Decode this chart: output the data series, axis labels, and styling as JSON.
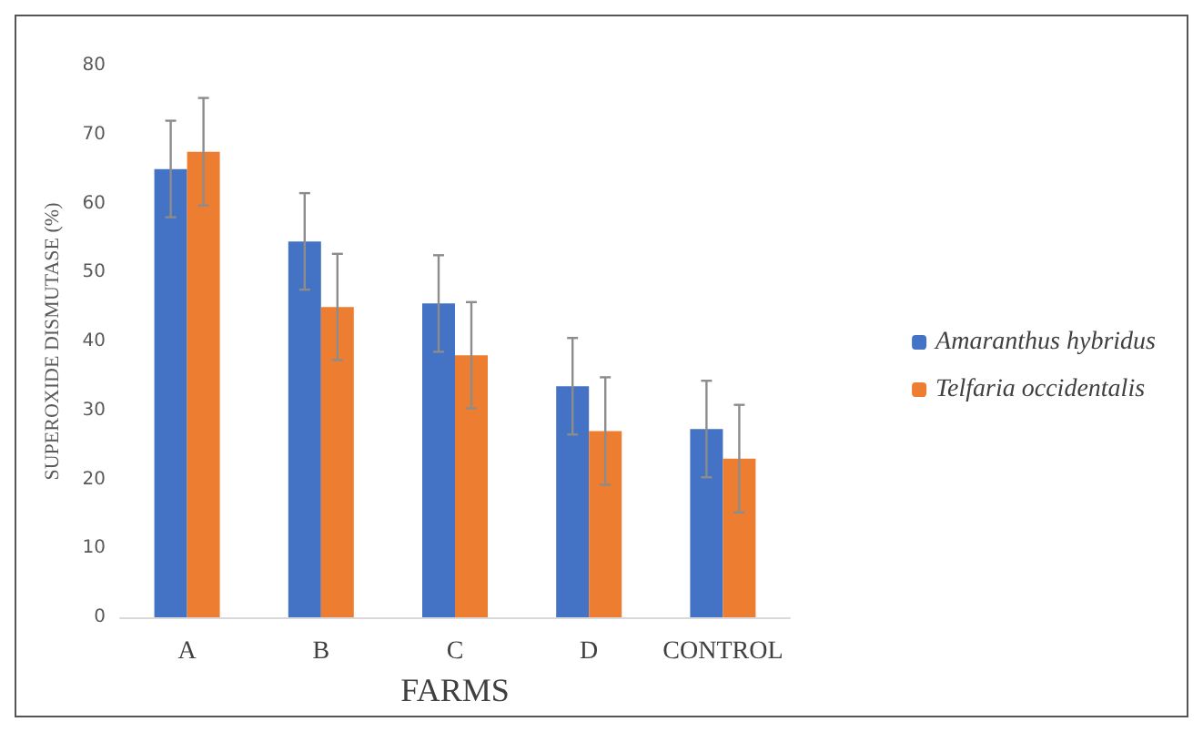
{
  "chart_data": {
    "type": "bar",
    "xlabel": "FARMS",
    "ylabel": "SUPEROXIDE DISMUTASE (%)",
    "categories": [
      "A",
      "B",
      "C",
      "D",
      "CONTROL"
    ],
    "series": [
      {
        "name": "Amaranthus hybridus",
        "color": "#4472c4",
        "values": [
          65,
          54.5,
          45.5,
          33.5,
          27.3
        ],
        "errors": [
          7,
          7,
          7,
          7,
          7
        ]
      },
      {
        "name": "Telfaria occidentalis",
        "color": "#ed7d31",
        "values": [
          67.5,
          45,
          38,
          27,
          23
        ],
        "errors": [
          7.8,
          7.7,
          7.7,
          7.8,
          7.8
        ]
      }
    ],
    "ylim": [
      0,
      80
    ],
    "yticks": [
      0,
      10,
      20,
      30,
      40,
      50,
      60,
      70,
      80
    ],
    "grid": false,
    "legend": "right"
  }
}
